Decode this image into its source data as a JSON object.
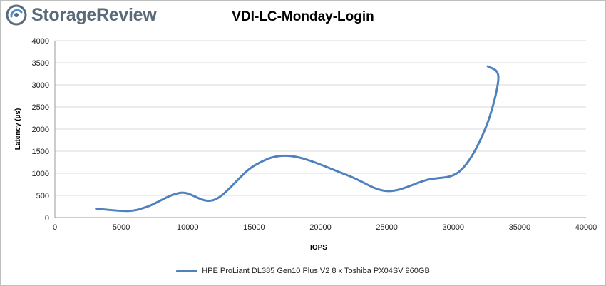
{
  "brand": {
    "name": "StorageReview",
    "logo_icon": "storagereview-logo-icon",
    "color": "#5a6a78",
    "accent": "#4a90d9"
  },
  "chart_data": {
    "type": "line",
    "title": "VDI-LC-Monday-Login",
    "xlabel": "IOPS",
    "ylabel": "Latency (µs)",
    "xlim": [
      0,
      40000
    ],
    "ylim": [
      0,
      4000
    ],
    "xticks": [
      0,
      5000,
      10000,
      15000,
      20000,
      25000,
      30000,
      35000,
      40000
    ],
    "yticks": [
      0,
      500,
      1000,
      1500,
      2000,
      2500,
      3000,
      3500,
      4000
    ],
    "grid": "horizontal",
    "legend_position": "bottom",
    "series": [
      {
        "name": "HPE ProLiant DL385 Gen10 Plus V2 8 x Toshiba PX04SV 960GB",
        "color": "#4f81bd",
        "x": [
          3100,
          5500,
          7000,
          9500,
          12000,
          15000,
          17800,
          22000,
          25000,
          28000,
          30500,
          32400,
          33400,
          32600
        ],
        "y": [
          200,
          150,
          250,
          560,
          400,
          1170,
          1390,
          960,
          600,
          850,
          1050,
          2000,
          3150,
          3420
        ]
      }
    ]
  }
}
